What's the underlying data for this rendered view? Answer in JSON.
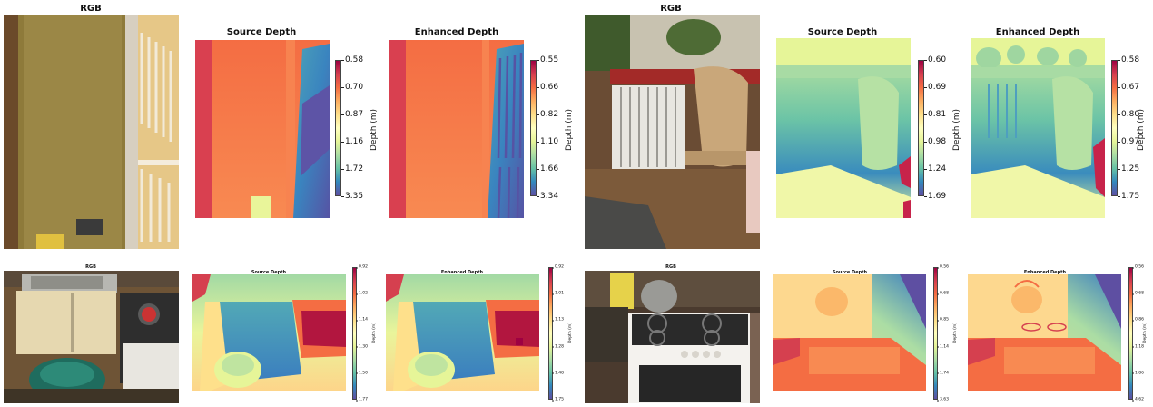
{
  "panels": {
    "top_left": {
      "rgb_title": "RGB",
      "source_title": "Source Depth",
      "enhanced_title": "Enhanced Depth",
      "source_colorbar": {
        "label": "Depth (m)",
        "ticks": [
          "0.58",
          "0.70",
          "0.87",
          "1.16",
          "1.72",
          "3.35"
        ]
      },
      "enhanced_colorbar": {
        "label": "Depth (m)",
        "ticks": [
          "0.55",
          "0.66",
          "0.82",
          "1.10",
          "1.66",
          "3.34"
        ]
      }
    },
    "top_right": {
      "rgb_title": "RGB",
      "source_title": "Source Depth",
      "enhanced_title": "Enhanced Depth",
      "source_colorbar": {
        "label": "Depth (m)",
        "ticks": [
          "0.60",
          "0.69",
          "0.81",
          "0.98",
          "1.24",
          "1.69"
        ]
      },
      "enhanced_colorbar": {
        "label": "Depth (m)",
        "ticks": [
          "0.58",
          "0.67",
          "0.80",
          "0.97",
          "1.25",
          "1.75"
        ]
      }
    },
    "bottom_left": {
      "rgb_title": "RGB",
      "source_title": "Source Depth",
      "enhanced_title": "Enhanced Depth",
      "source_colorbar": {
        "label": "Depth (m)",
        "ticks": [
          "0.92",
          "1.02",
          "1.14",
          "1.30",
          "1.50",
          "1.77"
        ]
      },
      "enhanced_colorbar": {
        "label": "Depth (m)",
        "ticks": [
          "0.92",
          "1.01",
          "1.13",
          "1.28",
          "1.48",
          "1.75"
        ]
      }
    },
    "bottom_right": {
      "rgb_title": "RGB",
      "source_title": "Source Depth",
      "enhanced_title": "Enhanced Depth",
      "source_colorbar": {
        "label": "Depth (m)",
        "ticks": [
          "0.56",
          "0.68",
          "0.85",
          "1.14",
          "1.74",
          "3.63"
        ]
      },
      "enhanced_colorbar": {
        "label": "Depth (m)",
        "ticks": [
          "0.56",
          "0.68",
          "0.86",
          "1.18",
          "1.86",
          "4.62"
        ]
      }
    }
  },
  "colormap": [
    "#9e0142",
    "#d53e4f",
    "#f46d43",
    "#fdae61",
    "#fee08b",
    "#ffffbf",
    "#e6f598",
    "#abdda4",
    "#66c2a5",
    "#3288bd",
    "#5e4fa2"
  ]
}
